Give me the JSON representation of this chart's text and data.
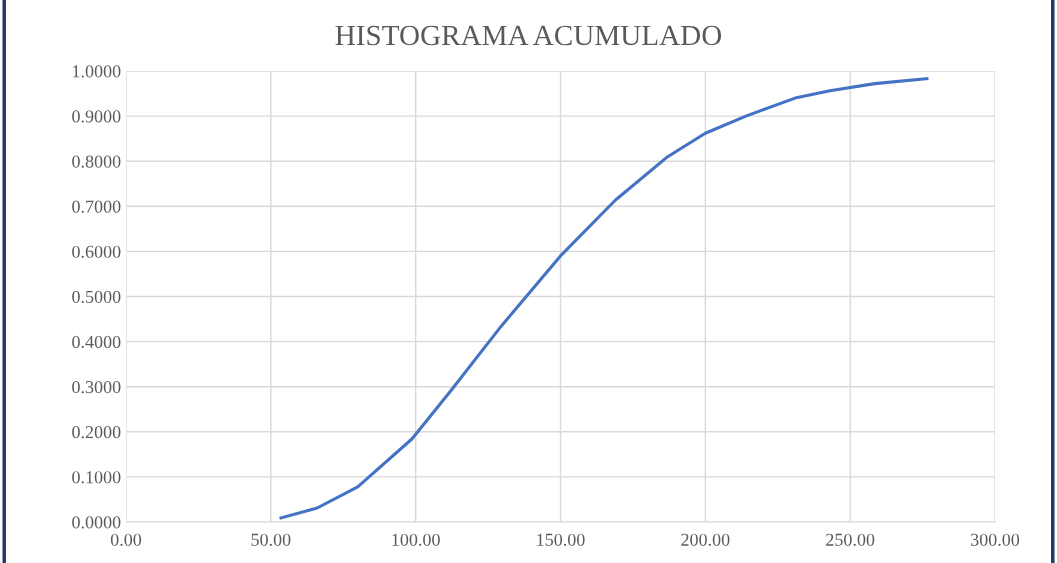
{
  "chart_data": {
    "type": "line",
    "title": "HISTOGRAMA ACUMULADO",
    "x": [
      53.5,
      66,
      80,
      98.7,
      112,
      129,
      150,
      169,
      187,
      200,
      214,
      231,
      243,
      258.5,
      276.5
    ],
    "series": [
      {
        "color": "#4472c4",
        "values": [
          0.009,
          0.031,
          0.078,
          0.184,
          0.29,
          0.43,
          0.59,
          0.714,
          0.81,
          0.862,
          0.9,
          0.94,
          0.956,
          0.972,
          0.983
        ]
      }
    ],
    "xlim": [
      0,
      300
    ],
    "xticks": [
      {
        "value": 0,
        "label": "0.00"
      },
      {
        "value": 50,
        "label": "50.00"
      },
      {
        "value": 100,
        "label": "100.00"
      },
      {
        "value": 150,
        "label": "150.00"
      },
      {
        "value": 200,
        "label": "200.00"
      },
      {
        "value": 250,
        "label": "250.00"
      },
      {
        "value": 300,
        "label": "300.00"
      }
    ],
    "ylim": [
      0,
      1
    ],
    "yticks": [
      {
        "value": 0,
        "label": "0.0000"
      },
      {
        "value": 0.1,
        "label": "0.1000"
      },
      {
        "value": 0.2,
        "label": "0.2000"
      },
      {
        "value": 0.3,
        "label": "0.3000"
      },
      {
        "value": 0.4,
        "label": "0.4000"
      },
      {
        "value": 0.5,
        "label": "0.5000"
      },
      {
        "value": 0.6,
        "label": "0.6000"
      },
      {
        "value": 0.7,
        "label": "0.7000"
      },
      {
        "value": 0.8,
        "label": "0.8000"
      },
      {
        "value": 0.9,
        "label": "0.9000"
      },
      {
        "value": 1,
        "label": "1.0000"
      }
    ],
    "grid": true,
    "marker": "none",
    "line_style": "solid"
  }
}
